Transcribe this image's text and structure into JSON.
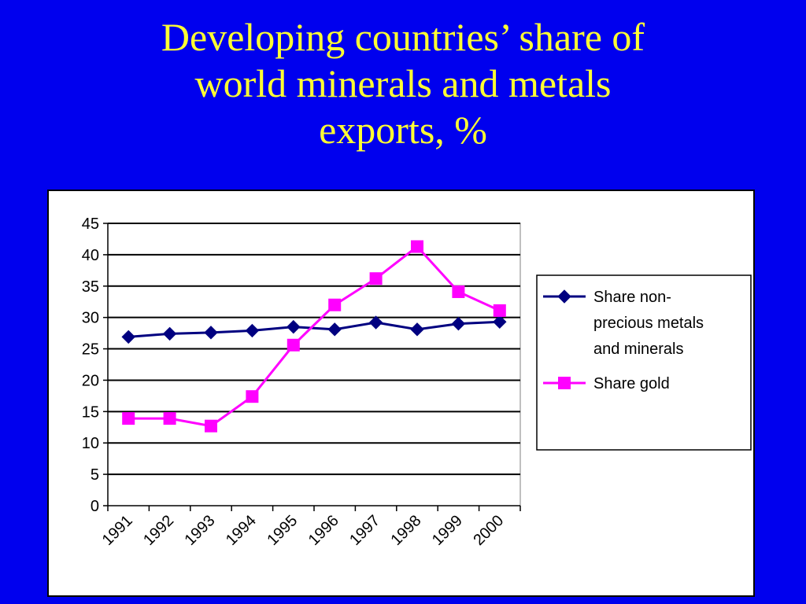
{
  "slide": {
    "title_lines": [
      "Developing countries’ share of",
      "world minerals and metals",
      "exports, %"
    ]
  },
  "chart_data": {
    "type": "line",
    "title": "",
    "xlabel": "",
    "ylabel": "",
    "categories": [
      "1991",
      "1992",
      "1993",
      "1994",
      "1995",
      "1996",
      "1997",
      "1998",
      "1999",
      "2000"
    ],
    "ylim": [
      0,
      45
    ],
    "yticks": [
      "0",
      "5",
      "10",
      "15",
      "20",
      "25",
      "30",
      "35",
      "40",
      "45"
    ],
    "grid": true,
    "legend_position": "right",
    "series": [
      {
        "name": "Share non-precious metals and minerals",
        "legend_lines": [
          "Share non-",
          "precious metals",
          "and minerals"
        ],
        "color": "#000080",
        "marker": "diamond",
        "values": [
          26.9,
          27.4,
          27.6,
          27.9,
          28.5,
          28.1,
          29.2,
          28.1,
          29.0,
          29.3
        ]
      },
      {
        "name": "Share gold",
        "legend_lines": [
          "Share gold"
        ],
        "color": "#ff00ff",
        "marker": "square",
        "values": [
          13.9,
          13.9,
          12.7,
          17.4,
          25.6,
          32.0,
          36.2,
          41.3,
          34.1,
          31.1
        ]
      }
    ]
  }
}
